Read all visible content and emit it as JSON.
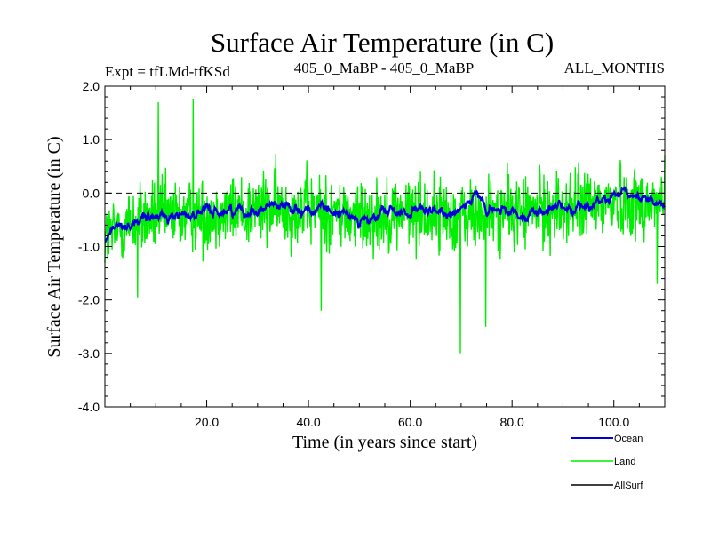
{
  "chart_data": {
    "type": "line",
    "title": "Surface Air Temperature (in C)",
    "subtitle_left": "Expt = tfLMd-tfKSd",
    "subtitle_center": "405_0_MaBP - 405_0_MaBP",
    "subtitle_right": "ALL_MONTHS",
    "xlabel": "Time (in years since start)",
    "ylabel": "Surface Air Temperature (in C)",
    "xlim": [
      0,
      110
    ],
    "ylim": [
      -4.0,
      2.0
    ],
    "xticks": [
      20,
      40,
      60,
      80,
      100
    ],
    "xtick_labels": [
      "20.0",
      "40.0",
      "60.0",
      "80.0",
      "100.0"
    ],
    "yticks": [
      -4,
      -3,
      -2,
      -1,
      0,
      1,
      2
    ],
    "ytick_labels": [
      "-4.0",
      "-3.0",
      "-2.0",
      "-1.0",
      "0.0",
      "1.0",
      "2.0"
    ],
    "reference_line": {
      "y": 0.0,
      "style": "dashed"
    },
    "sampling": "monthly",
    "series": [
      {
        "name": "Land",
        "color": "#00ee00",
        "mean_trend": [
          [
            0,
            -0.85
          ],
          [
            5,
            -0.55
          ],
          [
            10,
            -0.45
          ],
          [
            20,
            -0.4
          ],
          [
            30,
            -0.3
          ],
          [
            40,
            -0.3
          ],
          [
            50,
            -0.45
          ],
          [
            60,
            -0.35
          ],
          [
            70,
            -0.45
          ],
          [
            80,
            -0.35
          ],
          [
            90,
            -0.3
          ],
          [
            100,
            -0.15
          ],
          [
            110,
            -0.2
          ]
        ],
        "spread": 0.55,
        "extremes": [
          [
            10.5,
            1.7
          ],
          [
            17.3,
            1.75
          ],
          [
            6.4,
            -1.95
          ],
          [
            42.5,
            -2.2
          ],
          [
            69.8,
            -3.0
          ],
          [
            74.8,
            -2.5
          ],
          [
            108.5,
            -1.7
          ],
          [
            110,
            0.7
          ]
        ]
      },
      {
        "name": "Ocean",
        "color": "#0000dd",
        "mean_trend": [
          [
            0,
            -0.9
          ],
          [
            2,
            -0.65
          ],
          [
            5,
            -0.55
          ],
          [
            10,
            -0.45
          ],
          [
            20,
            -0.35
          ],
          [
            30,
            -0.3
          ],
          [
            33,
            -0.2
          ],
          [
            40,
            -0.3
          ],
          [
            50,
            -0.45
          ],
          [
            52,
            -0.55
          ],
          [
            55,
            -0.35
          ],
          [
            60,
            -0.35
          ],
          [
            67,
            -0.4
          ],
          [
            73,
            -0.05
          ],
          [
            75,
            -0.35
          ],
          [
            80,
            -0.35
          ],
          [
            85,
            -0.35
          ],
          [
            90,
            -0.3
          ],
          [
            100,
            -0.1
          ],
          [
            105,
            -0.05
          ],
          [
            110,
            -0.2
          ]
        ],
        "spread": 0.09
      },
      {
        "name": "AllSurf",
        "color": "#000000",
        "mean_trend": [],
        "spread": 0
      }
    ],
    "legend": {
      "position": "bottom-right",
      "entries": [
        "Ocean",
        "Land",
        "AllSurf"
      ]
    }
  }
}
